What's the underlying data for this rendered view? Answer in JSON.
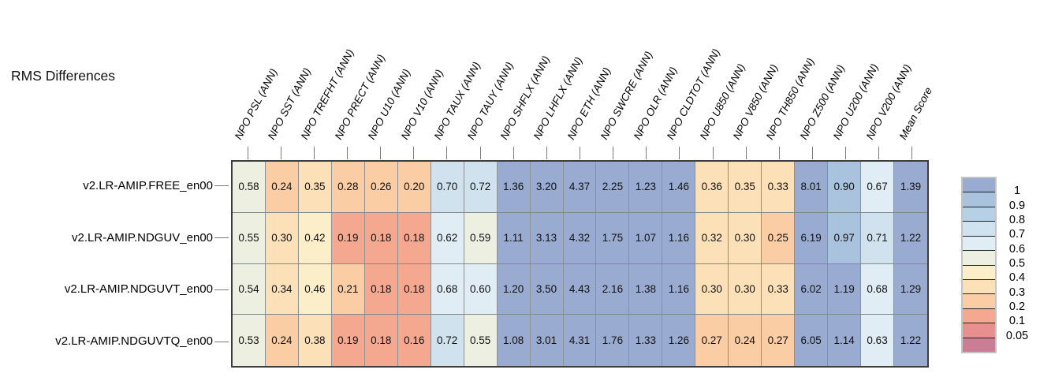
{
  "chart_data": {
    "type": "heatmap",
    "title": "RMS Differences",
    "columns": [
      "NPO PSL (ANN)",
      "NPO SST (ANN)",
      "NPO TREFHT (ANN)",
      "NPO PRECT (ANN)",
      "NPO U10 (ANN)",
      "NPO V10 (ANN)",
      "NPO TAUX (ANN)",
      "NPO TAUY (ANN)",
      "NPO SHFLX (ANN)",
      "NPO LHFLX (ANN)",
      "NPO ETH (ANN)",
      "NPO SWCRE (ANN)",
      "NPO OLR (ANN)",
      "NPO CLDTOT (ANN)",
      "NPO U850 (ANN)",
      "NPO V850 (ANN)",
      "NPO TH850 (ANN)",
      "NPO Z500 (ANN)",
      "NPO U200 (ANN)",
      "NPO V200 (ANN)",
      "Mean Score"
    ],
    "rows": [
      "v2.LR-AMIP.FREE_en00",
      "v2.LR-AMIP.NDGUV_en00",
      "v2.LR-AMIP.NDGUVT_en00",
      "v2.LR-AMIP.NDGUVTQ_en00"
    ],
    "values": [
      [
        "0.58",
        "0.24",
        "0.35",
        "0.28",
        "0.26",
        "0.20",
        "0.70",
        "0.72",
        "1.36",
        "3.20",
        "4.37",
        "2.25",
        "1.23",
        "1.46",
        "0.36",
        "0.35",
        "0.33",
        "8.01",
        "0.90",
        "0.67",
        "1.39"
      ],
      [
        "0.55",
        "0.30",
        "0.42",
        "0.19",
        "0.18",
        "0.18",
        "0.62",
        "0.59",
        "1.11",
        "3.13",
        "4.32",
        "1.75",
        "1.07",
        "1.16",
        "0.32",
        "0.30",
        "0.25",
        "6.19",
        "0.97",
        "0.71",
        "1.22"
      ],
      [
        "0.54",
        "0.34",
        "0.46",
        "0.21",
        "0.18",
        "0.18",
        "0.68",
        "0.60",
        "1.20",
        "3.50",
        "4.43",
        "2.16",
        "1.38",
        "1.16",
        "0.30",
        "0.30",
        "0.33",
        "6.02",
        "1.19",
        "0.68",
        "1.29"
      ],
      [
        "0.53",
        "0.24",
        "0.38",
        "0.19",
        "0.18",
        "0.16",
        "0.72",
        "0.55",
        "1.08",
        "3.01",
        "4.31",
        "1.76",
        "1.33",
        "1.26",
        "0.27",
        "0.24",
        "0.27",
        "6.05",
        "1.14",
        "0.63",
        "1.22"
      ]
    ],
    "colorbar": {
      "tick_labels": [
        "1",
        "0.9",
        "0.8",
        "0.7",
        "0.6",
        "0.5",
        "0.4",
        "0.3",
        "0.2",
        "0.1",
        "0.05"
      ],
      "thresholds_desc": [
        1,
        0.9,
        0.8,
        0.7,
        0.6,
        0.5,
        0.4,
        0.3,
        0.2,
        0.1,
        0.05
      ],
      "colors_top_to_bottom": [
        "#9aabd1",
        "#a9c3de",
        "#b6d1e6",
        "#cfe2ee",
        "#e0edf4",
        "#edefe0",
        "#fdeeca",
        "#fce0b8",
        "#fbcda4",
        "#f3a88f",
        "#e88f90",
        "#cb7d96"
      ],
      "legend_position": "right"
    },
    "xlabel": "",
    "ylabel": "",
    "grid": true
  },
  "colors": {
    "background": "#ffffff",
    "grid_line": "#8b9095",
    "map_border": "#3d3d3d",
    "tick": "#7a7a7a",
    "text": "#000000"
  }
}
